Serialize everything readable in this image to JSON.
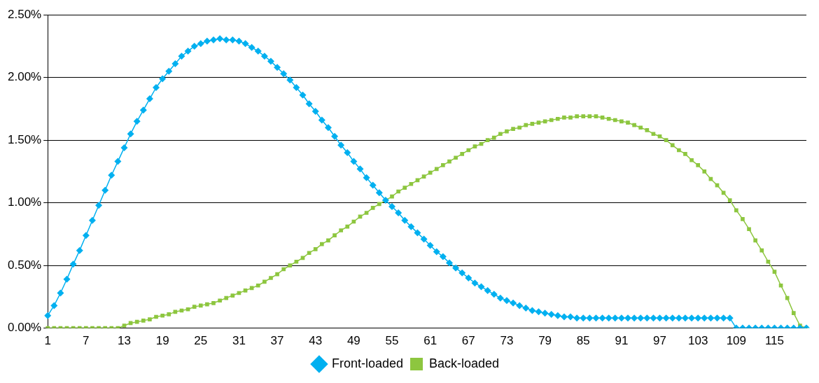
{
  "chart_data": {
    "type": "line",
    "categories": [
      "1",
      null,
      null,
      null,
      null,
      null,
      "7",
      null,
      null,
      null,
      null,
      null,
      "13",
      null,
      null,
      null,
      null,
      null,
      "19",
      null,
      null,
      null,
      null,
      null,
      "25",
      null,
      null,
      null,
      null,
      null,
      "31",
      null,
      null,
      null,
      null,
      null,
      "37",
      null,
      null,
      null,
      null,
      null,
      "43",
      null,
      null,
      null,
      null,
      null,
      "49",
      null,
      null,
      null,
      null,
      null,
      "55",
      null,
      null,
      null,
      null,
      null,
      "61",
      null,
      null,
      null,
      null,
      null,
      "67",
      null,
      null,
      null,
      null,
      null,
      "73",
      null,
      null,
      null,
      null,
      null,
      "79",
      null,
      null,
      null,
      null,
      null,
      "85",
      null,
      null,
      null,
      null,
      null,
      "91",
      null,
      null,
      null,
      null,
      null,
      "97",
      null,
      null,
      null,
      null,
      null,
      "103",
      null,
      null,
      null,
      null,
      null,
      "109",
      null,
      null,
      null,
      null,
      null,
      "115",
      null,
      null,
      null,
      null,
      null
    ],
    "series": [
      {
        "name": "Front-loaded",
        "color": "#00b0f0",
        "marker": "diamond",
        "values": [
          0.1,
          0.18,
          0.28,
          0.39,
          0.51,
          0.62,
          0.74,
          0.86,
          0.98,
          1.1,
          1.22,
          1.33,
          1.44,
          1.55,
          1.65,
          1.74,
          1.83,
          1.92,
          1.99,
          2.05,
          2.11,
          2.17,
          2.21,
          2.25,
          2.27,
          2.29,
          2.3,
          2.31,
          2.3,
          2.3,
          2.29,
          2.27,
          2.24,
          2.21,
          2.17,
          2.13,
          2.08,
          2.03,
          1.98,
          1.92,
          1.86,
          1.79,
          1.73,
          1.66,
          1.6,
          1.53,
          1.46,
          1.4,
          1.33,
          1.27,
          1.2,
          1.14,
          1.08,
          1.02,
          0.97,
          0.92,
          0.86,
          0.81,
          0.76,
          0.71,
          0.66,
          0.61,
          0.57,
          0.52,
          0.48,
          0.44,
          0.4,
          0.36,
          0.33,
          0.3,
          0.27,
          0.24,
          0.22,
          0.2,
          0.18,
          0.16,
          0.14,
          0.13,
          0.12,
          0.11,
          0.1,
          0.09,
          0.09,
          0.08,
          0.08,
          0.08,
          0.08,
          0.08,
          0.08,
          0.08,
          0.08,
          0.08,
          0.08,
          0.08,
          0.08,
          0.08,
          0.08,
          0.08,
          0.08,
          0.08,
          0.08,
          0.08,
          0.08,
          0.08,
          0.08,
          0.08,
          0.08,
          0.08,
          0,
          0,
          0,
          0,
          0,
          0,
          0,
          0,
          0,
          0,
          0,
          0
        ]
      },
      {
        "name": "Back-loaded",
        "color": "#8dc63f",
        "marker": "square",
        "values": [
          0,
          0,
          0,
          0,
          0,
          0,
          0,
          0,
          0,
          0,
          0,
          0,
          0.02,
          0.04,
          0.05,
          0.06,
          0.07,
          0.09,
          0.1,
          0.11,
          0.13,
          0.14,
          0.15,
          0.17,
          0.18,
          0.19,
          0.2,
          0.22,
          0.24,
          0.26,
          0.28,
          0.3,
          0.32,
          0.34,
          0.37,
          0.4,
          0.43,
          0.47,
          0.5,
          0.53,
          0.56,
          0.6,
          0.63,
          0.67,
          0.7,
          0.74,
          0.78,
          0.81,
          0.85,
          0.89,
          0.92,
          0.96,
          0.99,
          1.02,
          1.05,
          1.09,
          1.12,
          1.15,
          1.18,
          1.21,
          1.24,
          1.27,
          1.3,
          1.33,
          1.36,
          1.39,
          1.42,
          1.45,
          1.47,
          1.5,
          1.52,
          1.55,
          1.57,
          1.59,
          1.6,
          1.62,
          1.63,
          1.64,
          1.65,
          1.66,
          1.67,
          1.68,
          1.68,
          1.69,
          1.69,
          1.69,
          1.69,
          1.68,
          1.67,
          1.66,
          1.65,
          1.64,
          1.62,
          1.6,
          1.58,
          1.55,
          1.53,
          1.5,
          1.46,
          1.42,
          1.39,
          1.34,
          1.3,
          1.25,
          1.19,
          1.14,
          1.08,
          1.02,
          0.94,
          0.87,
          0.79,
          0.7,
          0.62,
          0.53,
          0.45,
          0.34,
          0.24,
          0.12,
          0.02,
          0
        ]
      }
    ],
    "ylim": [
      0,
      2.5
    ],
    "yticks": [
      {
        "value": 0,
        "label": "0.00%"
      },
      {
        "value": 0.5,
        "label": "0.50%"
      },
      {
        "value": 1,
        "label": "1.00%"
      },
      {
        "value": 1.5,
        "label": "1.50%"
      },
      {
        "value": 2,
        "label": "2.00%"
      },
      {
        "value": 2.5,
        "label": "2.50%"
      }
    ],
    "grid": "y",
    "legend": "bottom"
  }
}
